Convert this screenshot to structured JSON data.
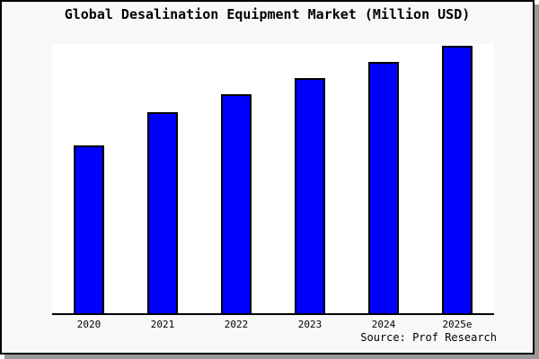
{
  "window": {
    "panel_background": "#f8f8f8",
    "border_color": "#000000",
    "shadow_color": "#999999"
  },
  "chart_data": {
    "type": "bar",
    "title": "Global Desalination Equipment Market (Million USD)",
    "categories": [
      "2020",
      "2021",
      "2022",
      "2023",
      "2024",
      "2025e"
    ],
    "values_pct_of_plot_height": [
      62.6,
      74.8,
      81.3,
      87.4,
      93.4,
      99.5
    ],
    "series_note": "no numeric axis labels or data labels shown; values are relative bar heights in % of plot height",
    "bar_color": "#0000ff",
    "bar_border_color": "#000000",
    "plot_background": "#ffffff",
    "axis_color": "#000000",
    "gridlines": false,
    "legend": false,
    "y_axis_tick_labels": false,
    "xlabel": "",
    "ylabel": "",
    "source": "Source: Prof Research"
  }
}
